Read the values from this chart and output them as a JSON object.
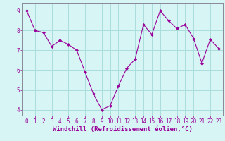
{
  "x": [
    0,
    1,
    2,
    3,
    4,
    5,
    6,
    7,
    8,
    9,
    10,
    11,
    12,
    13,
    14,
    15,
    16,
    17,
    18,
    19,
    20,
    21,
    22,
    23
  ],
  "y": [
    9.0,
    8.0,
    7.9,
    7.2,
    7.5,
    7.3,
    7.0,
    5.9,
    4.8,
    4.0,
    4.2,
    5.2,
    6.1,
    6.55,
    8.3,
    7.8,
    9.0,
    8.5,
    8.1,
    8.3,
    7.6,
    6.35,
    7.55,
    7.1
  ],
  "line_color": "#990099",
  "marker": "D",
  "marker_size": 2,
  "bg_color": "#d8f5f5",
  "grid_color": "#aadddd",
  "xlabel": "Windchill (Refroidissement éolien,°C)",
  "xlabel_color": "#990099",
  "xlabel_fontsize": 6.5,
  "ytick_labels": [
    "4",
    "5",
    "6",
    "7",
    "8",
    "9"
  ],
  "ytick_values": [
    4,
    5,
    6,
    7,
    8,
    9
  ],
  "xtick_values": [
    0,
    1,
    2,
    3,
    4,
    5,
    6,
    7,
    8,
    9,
    10,
    11,
    12,
    13,
    14,
    15,
    16,
    17,
    18,
    19,
    20,
    21,
    22,
    23
  ],
  "ylim": [
    3.7,
    9.4
  ],
  "xlim": [
    -0.5,
    23.5
  ],
  "axis_color": "#888899",
  "tick_color": "#990099",
  "tick_fontsize": 5.5,
  "linewidth": 0.8
}
